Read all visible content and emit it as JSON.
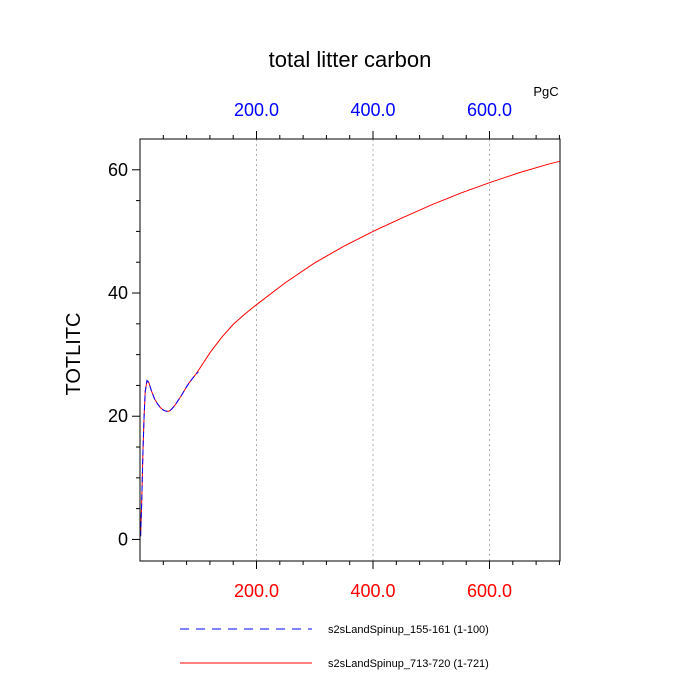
{
  "chart_data": {
    "type": "line",
    "title": "total litter carbon",
    "units": "PgC",
    "ylabel": "TOTLITC",
    "xlabel": "",
    "xlim": [
      0,
      721
    ],
    "ylim": [
      -3.5,
      65
    ],
    "grid": {
      "x_dashed": true,
      "y": false
    },
    "colors": {
      "bottom_ticks": "#ff0000",
      "top_ticks": "#0000ff"
    },
    "x_ticks": [
      {
        "value": 200,
        "label": "200.0"
      },
      {
        "value": 400,
        "label": "400.0"
      },
      {
        "value": 600,
        "label": "600.0"
      }
    ],
    "y_ticks": [
      {
        "value": 0,
        "label": "0"
      },
      {
        "value": 20,
        "label": "20"
      },
      {
        "value": 40,
        "label": "40"
      },
      {
        "value": 60,
        "label": "60"
      }
    ],
    "legend_position": "bottom",
    "series": [
      {
        "name": "s2sLandSpinup_155-161 (1-100)",
        "color": "#0000ff",
        "style": "dashed",
        "x": [
          1,
          3,
          5,
          7,
          9,
          12,
          15,
          20,
          25,
          30,
          35,
          40,
          45,
          50,
          55,
          60,
          65,
          70,
          75,
          80,
          85,
          90,
          95,
          100
        ],
        "y": [
          0.5,
          6,
          14,
          20,
          24,
          25.8,
          25.5,
          24,
          22.8,
          22,
          21.4,
          21,
          20.8,
          20.8,
          21.2,
          21.8,
          22.5,
          23.2,
          24,
          24.8,
          25.5,
          26.1,
          26.7,
          27.2
        ]
      },
      {
        "name": "s2sLandSpinup_713-720 (1-721)",
        "color": "#ff0000",
        "style": "solid",
        "x": [
          1,
          3,
          5,
          7,
          9,
          12,
          15,
          20,
          25,
          30,
          35,
          40,
          45,
          50,
          55,
          60,
          65,
          70,
          75,
          80,
          85,
          90,
          95,
          100,
          120,
          140,
          160,
          180,
          200,
          250,
          300,
          350,
          400,
          450,
          500,
          550,
          600,
          650,
          700,
          721
        ],
        "y": [
          0.5,
          6,
          14,
          20,
          24,
          25.8,
          25.5,
          24,
          22.8,
          22,
          21.4,
          21,
          20.8,
          20.8,
          21.2,
          21.8,
          22.5,
          23.2,
          24,
          24.8,
          25.5,
          26.1,
          26.7,
          27.4,
          30.3,
          32.8,
          34.9,
          36.6,
          38.1,
          41.7,
          44.9,
          47.6,
          50.0,
          52.2,
          54.3,
          56.2,
          57.9,
          59.5,
          60.9,
          61.4
        ]
      }
    ]
  }
}
